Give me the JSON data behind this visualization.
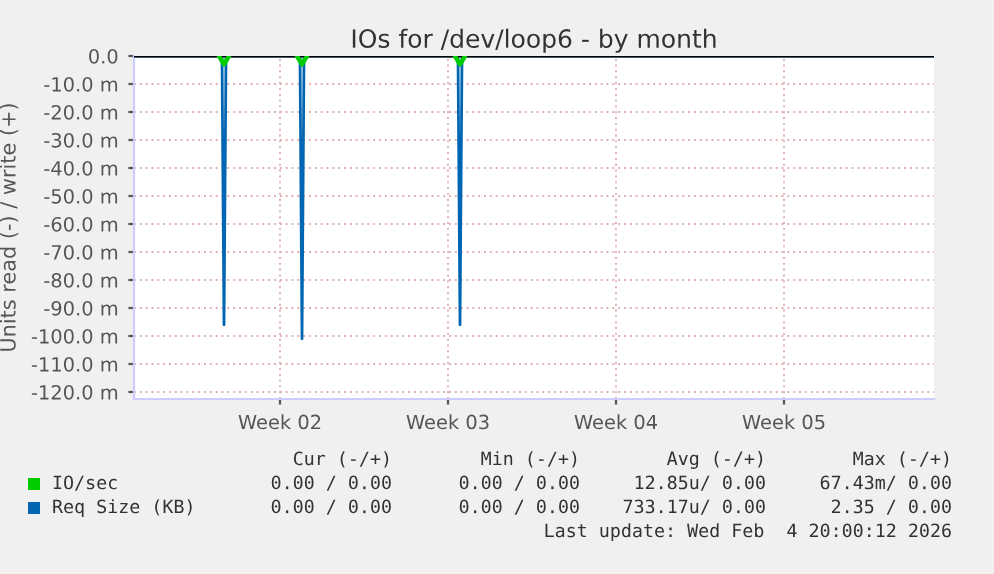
{
  "chart_data": {
    "type": "line",
    "title": "IOs for /dev/loop6 - by month",
    "ylabel": "Units read (-) / write (+)",
    "xlim": [
      "2026-01-02T10:00",
      "2026-02-04T18:00"
    ],
    "xticks": [
      {
        "value": "2026-01-08T12:00",
        "label": "Week 02"
      },
      {
        "value": "2026-01-15T12:00",
        "label": "Week 03"
      },
      {
        "value": "2026-01-22T12:00",
        "label": "Week 04"
      },
      {
        "value": "2026-01-29T12:00",
        "label": "Week 05"
      }
    ],
    "ylim": [
      -122.5,
      0
    ],
    "yticks": [
      {
        "value": 0,
        "label": "0.0"
      },
      {
        "value": -10,
        "label": "-10.0 m"
      },
      {
        "value": -20,
        "label": "-20.0 m"
      },
      {
        "value": -30,
        "label": "-30.0 m"
      },
      {
        "value": -40,
        "label": "-40.0 m"
      },
      {
        "value": -50,
        "label": "-50.0 m"
      },
      {
        "value": -60,
        "label": "-60.0 m"
      },
      {
        "value": -70,
        "label": "-70.0 m"
      },
      {
        "value": -80,
        "label": "-80.0 m"
      },
      {
        "value": -90,
        "label": "-90.0 m"
      },
      {
        "value": -100,
        "label": "-100.0 m"
      },
      {
        "value": -110,
        "label": "-110.0 m"
      },
      {
        "value": -120,
        "label": "-120.0 m"
      }
    ],
    "grid": true,
    "legend": "bottom left",
    "series": [
      {
        "name": "IO/sec",
        "color": "#00cc00",
        "x": [
          "2026-01-05T23:00",
          "2026-01-06T04:00",
          "2026-01-06T09:00",
          "2026-01-07T00:00",
          "2026-01-09T05:00",
          "2026-01-09T10:00",
          "2026-01-09T15:00",
          "2026-01-12T00:00",
          "2026-01-15T19:00",
          "2026-01-16T00:00",
          "2026-01-16T05:00"
        ],
        "values": [
          0,
          -3,
          0,
          null,
          0,
          -3,
          0,
          null,
          0,
          -3,
          0
        ]
      },
      {
        "name": "Req Size (KB)",
        "color": "#0066b3",
        "x": [
          "2026-01-02T10:00",
          "2026-01-06T02:00",
          "2026-01-06T04:00",
          "2026-01-06T06:00",
          "2026-01-09T08:00",
          "2026-01-09T10:00",
          "2026-01-09T12:00",
          "2026-01-15T22:00",
          "2026-01-16T00:00",
          "2026-01-16T02:00",
          "2026-02-04T18:00"
        ],
        "values": [
          0,
          0,
          -96,
          0,
          0,
          -101,
          0,
          0,
          -96,
          0,
          0
        ]
      }
    ],
    "annotations": [
      "Cur (-/+)",
      "Min (-/+)",
      "Avg (-/+)",
      "Max (-/+)",
      "0.00 / 0.00",
      "0.00 / 0.00",
      "12.85u/ 0.00",
      "67.43m/ 0.00",
      "0.00 / 0.00",
      "0.00 / 0.00",
      "733.17u/ 0.00",
      "2.35 / 0.00",
      "Last update: Wed Feb  4 20:00:12 2026"
    ]
  }
}
